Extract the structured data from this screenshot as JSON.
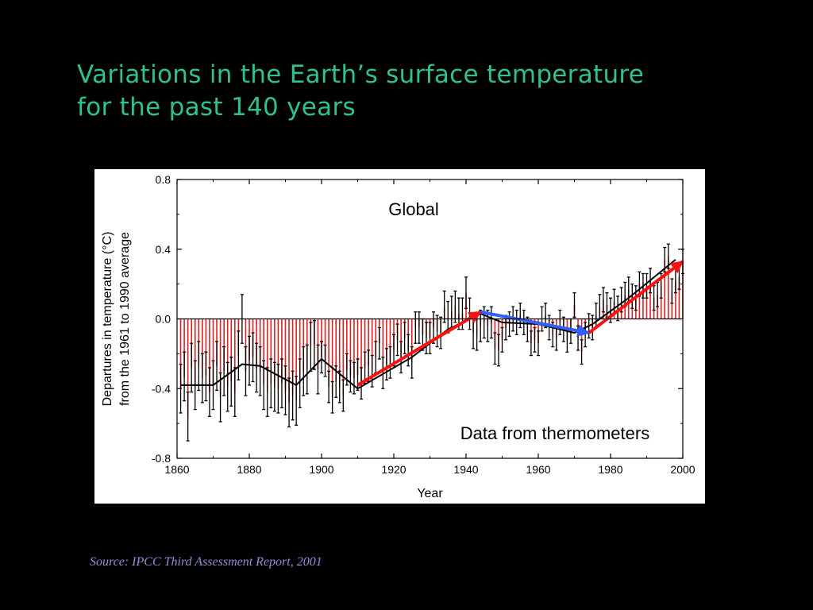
{
  "slide": {
    "title_line1": "Variations in the Earth’s surface temperature",
    "title_line2": "for the past 140 years",
    "source": "Source: IPCC Third Assessment Report, 2001"
  },
  "colors": {
    "background": "#000000",
    "title": "#2ec28f",
    "source": "#8f8fd8",
    "bars": "#e02020",
    "smooth_curve": "#000000",
    "trend_warming": "#ff1010",
    "trend_cooling": "#3060ff"
  },
  "chart_data": {
    "type": "bar",
    "title": "",
    "annotation_top": "Global",
    "annotation_bottom": "Data from thermometers",
    "xlabel": "Year",
    "ylabel_line1": "Departures in temperature (°C)",
    "ylabel_line2": "from the 1961 to 1990 average",
    "xlim": [
      1860,
      2000
    ],
    "ylim": [
      -0.8,
      0.8
    ],
    "x_ticks": [
      1860,
      1880,
      1900,
      1920,
      1940,
      1960,
      1980,
      2000
    ],
    "x_tick_labels": [
      "1860",
      "1880",
      "1900",
      "1920",
      "1940",
      "1960",
      "1980",
      "2000"
    ],
    "y_ticks": [
      0.8,
      0.4,
      0.0,
      -0.4,
      -0.8
    ],
    "y_tick_labels": [
      "0.8",
      "0.4",
      "0.0",
      "-0.4",
      "-0.8"
    ],
    "grid": false,
    "x_start_year": 1861,
    "values": [
      -0.4,
      -0.33,
      -0.56,
      -0.28,
      -0.38,
      -0.27,
      -0.34,
      -0.33,
      -0.42,
      -0.38,
      -0.27,
      -0.45,
      -0.3,
      -0.39,
      -0.36,
      -0.42,
      -0.21,
      0.0,
      -0.3,
      -0.24,
      -0.22,
      -0.28,
      -0.3,
      -0.38,
      -0.42,
      -0.37,
      -0.39,
      -0.4,
      -0.37,
      -0.41,
      -0.48,
      -0.44,
      -0.47,
      -0.37,
      -0.3,
      -0.29,
      -0.16,
      -0.15,
      -0.29,
      -0.22,
      -0.24,
      -0.39,
      -0.45,
      -0.36,
      -0.39,
      -0.44,
      -0.29,
      -0.33,
      -0.34,
      -0.32,
      -0.37,
      -0.28,
      -0.27,
      -0.3,
      -0.22,
      -0.14,
      -0.31,
      -0.26,
      -0.25,
      -0.18,
      -0.12,
      -0.22,
      -0.11,
      -0.18,
      -0.25,
      -0.05,
      -0.05,
      -0.09,
      -0.11,
      -0.11,
      -0.05,
      -0.07,
      -0.08,
      0.07,
      0.01,
      0.04,
      0.07,
      0.03,
      0.03,
      0.15,
      0.03,
      -0.08,
      -0.09,
      -0.04,
      -0.02,
      -0.04,
      -0.02,
      -0.17,
      -0.18,
      -0.12,
      -0.05,
      -0.03,
      0.0,
      -0.02,
      0.02,
      -0.02,
      -0.06,
      -0.14,
      -0.12,
      -0.14,
      0.0,
      0.02,
      -0.05,
      -0.09,
      -0.11,
      -0.02,
      -0.06,
      -0.12,
      -0.07,
      0.08,
      -0.11,
      -0.19,
      -0.09,
      -0.04,
      -0.05,
      0.02,
      0.07,
      0.11,
      0.08,
      0.05,
      0.1,
      0.06,
      0.11,
      0.14,
      0.17,
      0.13,
      0.12,
      0.2,
      0.19,
      0.19,
      0.22,
      0.12,
      0.14,
      0.19,
      0.34,
      0.36,
      0.16,
      0.22,
      0.24,
      0.33
    ],
    "smoothed": [
      [
        1861,
        -0.38
      ],
      [
        1870,
        -0.38
      ],
      [
        1878,
        -0.26
      ],
      [
        1883,
        -0.27
      ],
      [
        1893,
        -0.38
      ],
      [
        1900,
        -0.23
      ],
      [
        1910,
        -0.4
      ],
      [
        1925,
        -0.22
      ],
      [
        1935,
        -0.06
      ],
      [
        1944,
        0.03
      ],
      [
        1950,
        -0.02
      ],
      [
        1960,
        -0.03
      ],
      [
        1970,
        -0.08
      ],
      [
        1975,
        -0.03
      ],
      [
        1985,
        0.12
      ],
      [
        1998,
        0.34
      ]
    ],
    "trend_lines": [
      {
        "from": [
          1910,
          -0.38
        ],
        "to": [
          1944,
          0.04
        ],
        "kind": "warming"
      },
      {
        "from": [
          1944,
          0.04
        ],
        "to": [
          1974,
          -0.08
        ],
        "kind": "cooling"
      },
      {
        "from": [
          1974,
          -0.08
        ],
        "to": [
          2000,
          0.33
        ],
        "kind": "warming"
      }
    ]
  }
}
